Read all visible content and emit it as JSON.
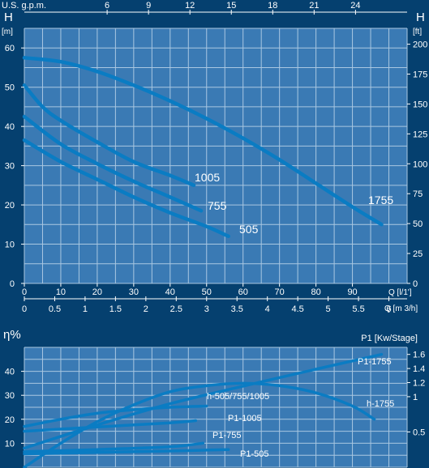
{
  "colors": {
    "background": "#05406f",
    "plot_area": "#3a7ab4",
    "grid": "#a9c7e1",
    "curve": "#0a7cc3",
    "text": "#ffffff"
  },
  "chart_data": [
    {
      "type": "line",
      "name": "head-chart",
      "top_axis_label": "U.S. g.p.m.",
      "top_ticks": [
        "6",
        "9",
        "12",
        "15",
        "18",
        "21",
        "24"
      ],
      "left_label": "H",
      "left_unit": "[m]",
      "right_label": "H",
      "right_unit": "[ft]",
      "ylim": [
        0,
        65
      ],
      "y_ticks": [
        "0",
        "10",
        "20",
        "30",
        "40",
        "50",
        "60"
      ],
      "right_ticks": [
        "0",
        "25",
        "50",
        "75",
        "100",
        "125",
        "150",
        "175",
        "200"
      ],
      "xlim": [
        0,
        105
      ],
      "x_ticks": [
        "0",
        "10",
        "20",
        "30",
        "40",
        "50",
        "60",
        "70",
        "80",
        "90"
      ],
      "x_label": "Q [l/1']",
      "x2_ticks": [
        "0",
        "0.5",
        "1",
        "1.5",
        "2",
        "2.5",
        "3",
        "3.5",
        "4",
        "4.5",
        "5",
        "5.5",
        "6"
      ],
      "x2_label": "Q [m 3/h]",
      "series": [
        {
          "name": "1755",
          "x": [
            0,
            10,
            20,
            30,
            40,
            50,
            60,
            70,
            80,
            90,
            98
          ],
          "y": [
            57.5,
            56.5,
            54,
            50.5,
            46.5,
            42,
            37,
            31.5,
            25.5,
            19.5,
            15
          ]
        },
        {
          "name": "1005",
          "x": [
            0,
            5,
            10,
            20,
            30,
            40,
            46.5
          ],
          "y": [
            50.5,
            45,
            41.5,
            36,
            31,
            27.5,
            25
          ]
        },
        {
          "name": "755",
          "x": [
            0,
            10,
            20,
            30,
            40,
            48.5
          ],
          "y": [
            42.5,
            35.5,
            30.5,
            26,
            22,
            18.5
          ]
        },
        {
          "name": "505",
          "x": [
            0,
            10,
            20,
            30,
            40,
            50,
            56
          ],
          "y": [
            36.5,
            31,
            26.5,
            22,
            18,
            14.5,
            12
          ]
        }
      ]
    },
    {
      "type": "line",
      "name": "efficiency-chart",
      "left_label": "η%",
      "right_label": "P1 [Kw/Stage]",
      "ylim": [
        0,
        50
      ],
      "y_ticks": [
        "10",
        "20",
        "30",
        "40"
      ],
      "right_ylim": [
        0,
        1.7
      ],
      "right_ticks": [
        "0.5",
        "1",
        "1.2",
        "1.4",
        "1.6"
      ],
      "xlim": [
        0,
        105
      ],
      "series": [
        {
          "name": "P1-1755",
          "axis": "right",
          "x": [
            0,
            20,
            40,
            60,
            80,
            98
          ],
          "y": [
            0.27,
            0.6,
            0.9,
            1.15,
            1.39,
            1.6
          ]
        },
        {
          "name": "h-1755",
          "axis": "left",
          "x": [
            0,
            10,
            20,
            30,
            40,
            50,
            60,
            70,
            80,
            90,
            96
          ],
          "y": [
            0,
            10,
            19,
            26,
            31.5,
            34,
            35,
            34,
            31,
            25.5,
            20
          ]
        },
        {
          "name": "h-505/755/1005",
          "axis": "left",
          "x": [
            0,
            10,
            20,
            30,
            40,
            50
          ],
          "y": [
            17,
            20,
            22.5,
            24,
            25,
            25.5
          ]
        },
        {
          "name": "P1-1005",
          "axis": "right",
          "x": [
            0,
            20,
            40,
            47
          ],
          "y": [
            0.51,
            0.57,
            0.63,
            0.66
          ]
        },
        {
          "name": "P1-755",
          "axis": "right",
          "x": [
            0,
            20,
            40,
            49
          ],
          "y": [
            0.22,
            0.25,
            0.29,
            0.34
          ]
        },
        {
          "name": "P1-505",
          "axis": "right",
          "x": [
            0,
            20,
            40,
            56
          ],
          "y": [
            0.19,
            0.21,
            0.23,
            0.25
          ]
        }
      ],
      "labels": {
        "P1-1755": "P1-1755",
        "h-1755": "h-1755",
        "h-505/755/1005": "h-505/755/1005",
        "P1-1005": "P1-1005",
        "P1-755": "P1-755",
        "P1-505": "P1-505"
      }
    }
  ]
}
